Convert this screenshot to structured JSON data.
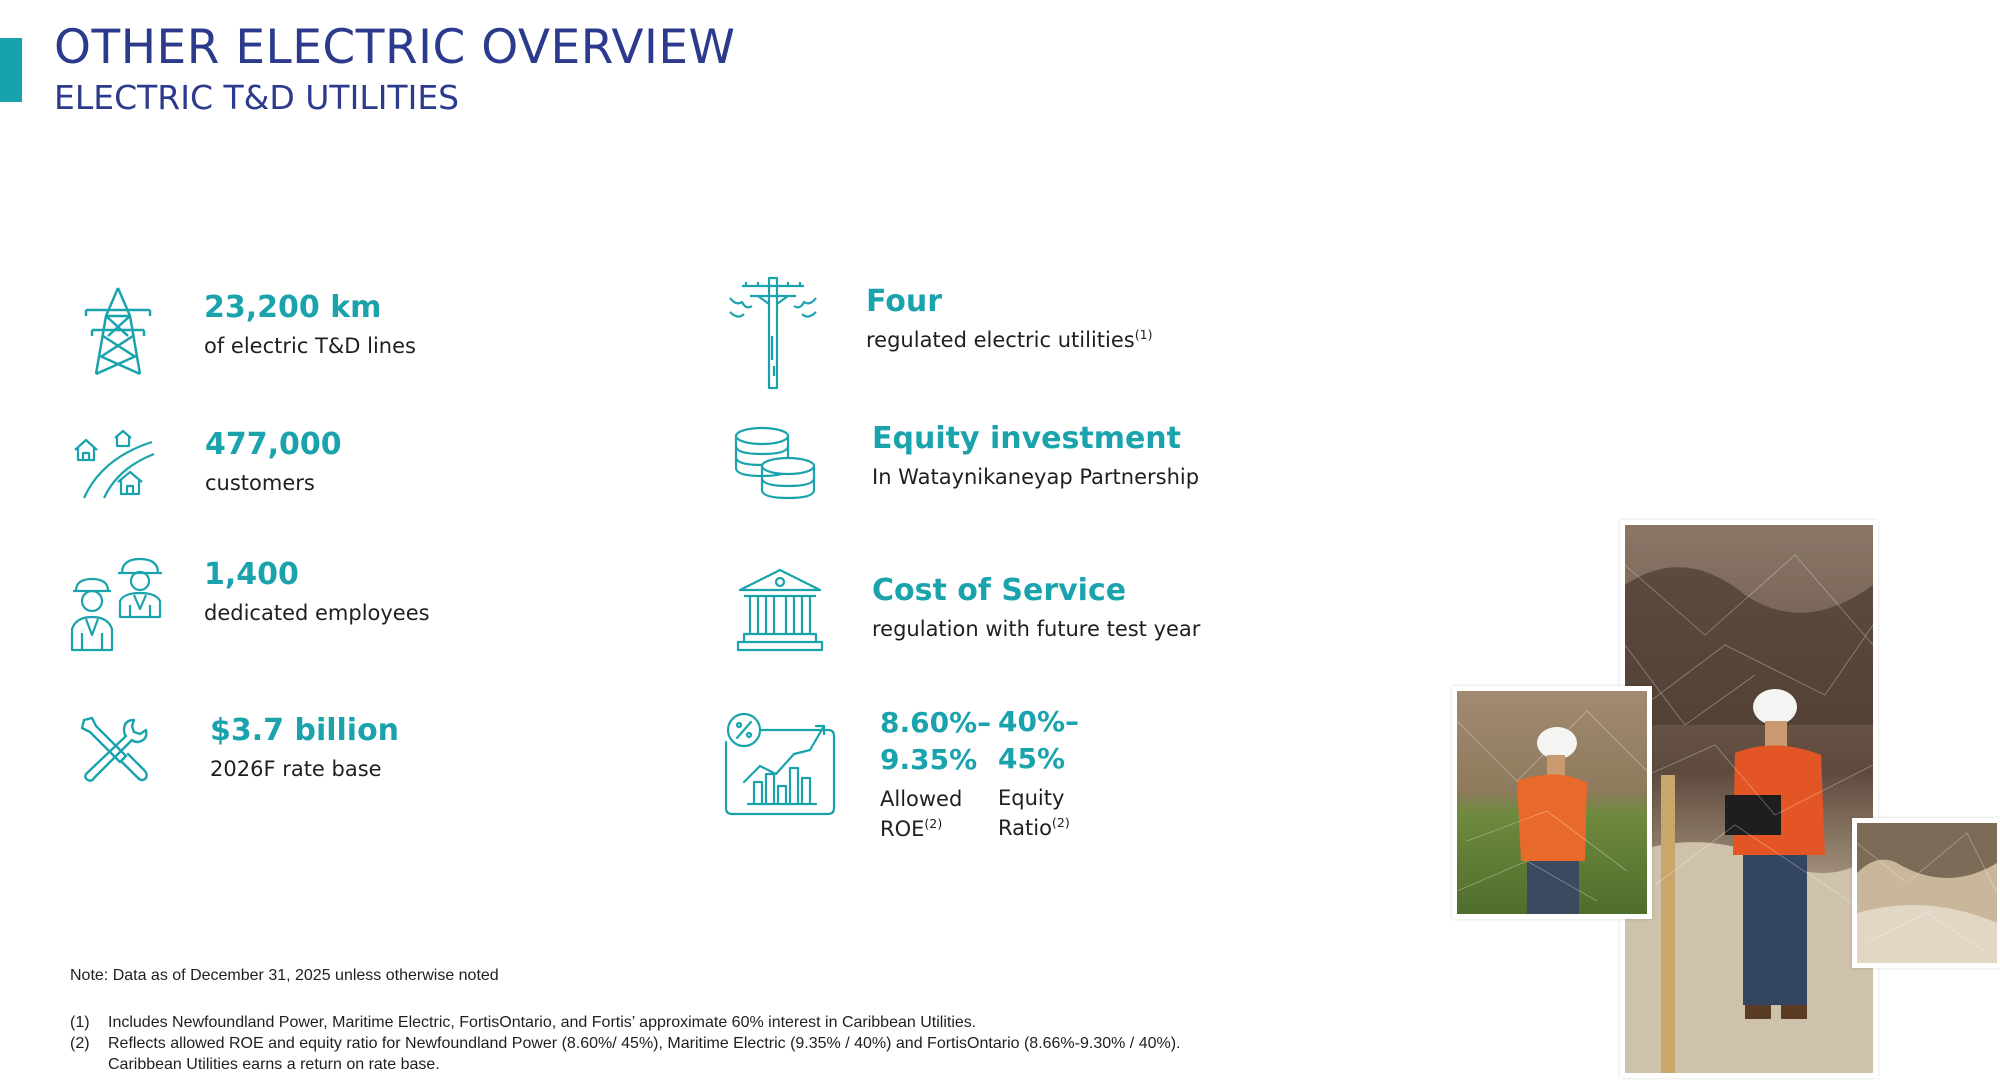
{
  "header": {
    "title": "OTHER ELECTRIC OVERVIEW",
    "subtitle": "ELECTRIC T&D UTILITIES"
  },
  "colors": {
    "accent": "#16a3ad",
    "title": "#2b3a8c",
    "text": "#1f1f1f"
  },
  "stats_left": [
    {
      "icon": "transmission-tower-icon",
      "value": "23,200 km",
      "desc": "of electric T&D lines"
    },
    {
      "icon": "houses-road-icon",
      "value": "477,000",
      "desc": "customers"
    },
    {
      "icon": "workers-icon",
      "value": "1,400",
      "desc": "dedicated employees"
    },
    {
      "icon": "wrench-screwdriver-icon",
      "value": "$3.7 billion",
      "desc": "2026F rate base"
    }
  ],
  "stats_right": [
    {
      "icon": "utility-pole-icon",
      "value": "Four",
      "desc": "regulated electric utilities",
      "sup": "(1)"
    },
    {
      "icon": "coins-stack-icon",
      "value": "Equity investment",
      "desc": "In Wataynikaneyap Partnership"
    },
    {
      "icon": "government-building-icon",
      "value": "Cost of Service",
      "desc": "regulation with future test year"
    }
  ],
  "ratios": {
    "icon": "growth-chart-percent-icon",
    "roe": {
      "value_line1": "8.60%–",
      "value_line2": "9.35%",
      "desc_line1": "Allowed",
      "desc_line2": "ROE",
      "sup": "(2)"
    },
    "equity": {
      "value_line1": "40%–",
      "value_line2": "45%",
      "desc_line1": "Equity",
      "desc_line2": "Ratio",
      "sup": "(2)"
    }
  },
  "note": "Note: Data as of December 31, 2025 unless otherwise noted",
  "footnotes": [
    {
      "num": "(1)",
      "text": "Includes Newfoundland Power, Maritime Electric, FortisOntario, and Fortis’ approximate 60% interest in Caribbean Utilities."
    },
    {
      "num": "(2)",
      "text": "Reflects allowed ROE and equity ratio for Newfoundland Power (8.60%/ 45%), Maritime Electric (9.35% / 40%) and FortisOntario (8.66%-9.30% / 40%).",
      "text2": "Caribbean Utilities earns a return on rate base."
    }
  ]
}
